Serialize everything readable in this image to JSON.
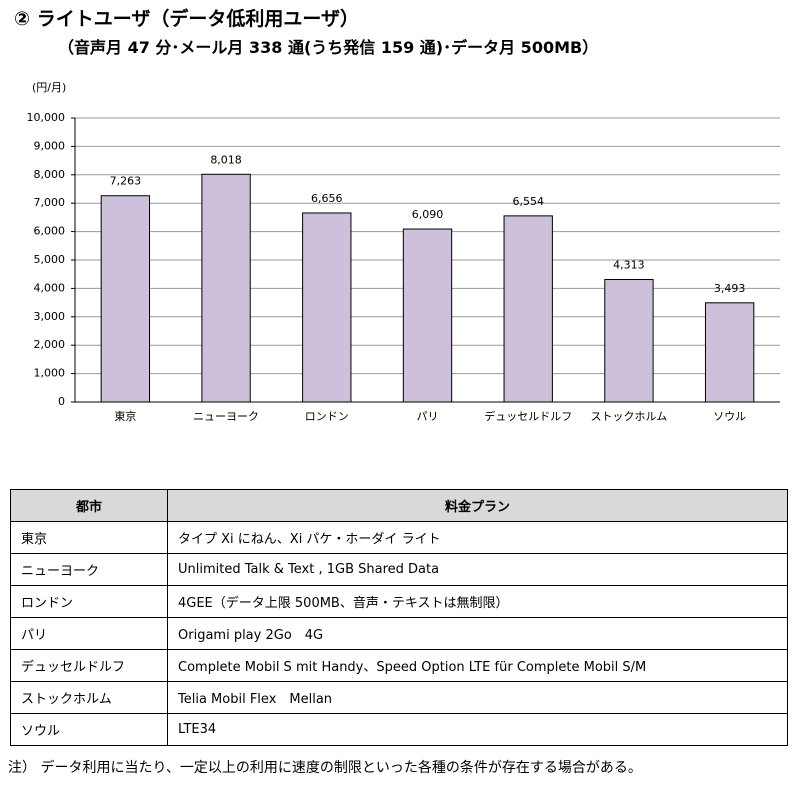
{
  "header": {
    "title": "② ライトユーザ（データ低利用ユーザ）",
    "subtitle": "（音声月 47 分･メール月 338 通(うち発信 159 通)･データ月 500MB）"
  },
  "chart_data": {
    "type": "bar",
    "y_label": "(円/月)",
    "categories": [
      "東京",
      "ニューヨーク",
      "ロンドン",
      "パリ",
      "デュッセルドルフ",
      "ストックホルム",
      "ソウル"
    ],
    "values": [
      7263,
      8018,
      6656,
      6090,
      6554,
      4313,
      3493
    ],
    "value_labels": [
      "7,263",
      "8,018",
      "6,656",
      "6,090",
      "6,554",
      "4,313",
      "3,493"
    ],
    "color": "#ccc0da",
    "grid": true,
    "ylim": [
      0,
      10000
    ],
    "yticks": [
      0,
      {
        "value": 1000,
        "label": "1,000"
      },
      {
        "value": 2000,
        "label": "2,000"
      },
      {
        "value": 3000,
        "label": "3,000"
      },
      {
        "value": 4000,
        "label": "4,000"
      },
      {
        "value": 5000,
        "label": "5,000"
      },
      {
        "value": 6000,
        "label": "6,000"
      },
      {
        "value": 7000,
        "label": "7,000"
      },
      {
        "value": 8000,
        "label": "8,000"
      },
      {
        "value": 9000,
        "label": "9,000"
      },
      {
        "value": 10000,
        "label": "10,000"
      }
    ]
  },
  "table": {
    "header": [
      "都市",
      "料金プラン"
    ],
    "rows": [
      [
        "東京",
        "タイプ Xi にねん、Xi パケ・ホーダイ ライト"
      ],
      [
        "ニューヨーク",
        "Unlimited Talk & Text , 1GB Shared Data"
      ],
      [
        "ロンドン",
        "4GEE（データ上限 500MB、音声・テキストは無制限）"
      ],
      [
        "パリ",
        "Origami play 2Go　4G"
      ],
      [
        "デュッセルドルフ",
        "Complete Mobil S mit Handy、Speed Option LTE für Complete Mobil S/M"
      ],
      [
        "ストックホルム",
        "Telia Mobil Flex　Mellan"
      ],
      [
        "ソウル",
        "LTE34"
      ]
    ]
  },
  "note": "注） データ利用に当たり、一定以上の利用に速度の制限といった各種の条件が存在する場合がある。"
}
